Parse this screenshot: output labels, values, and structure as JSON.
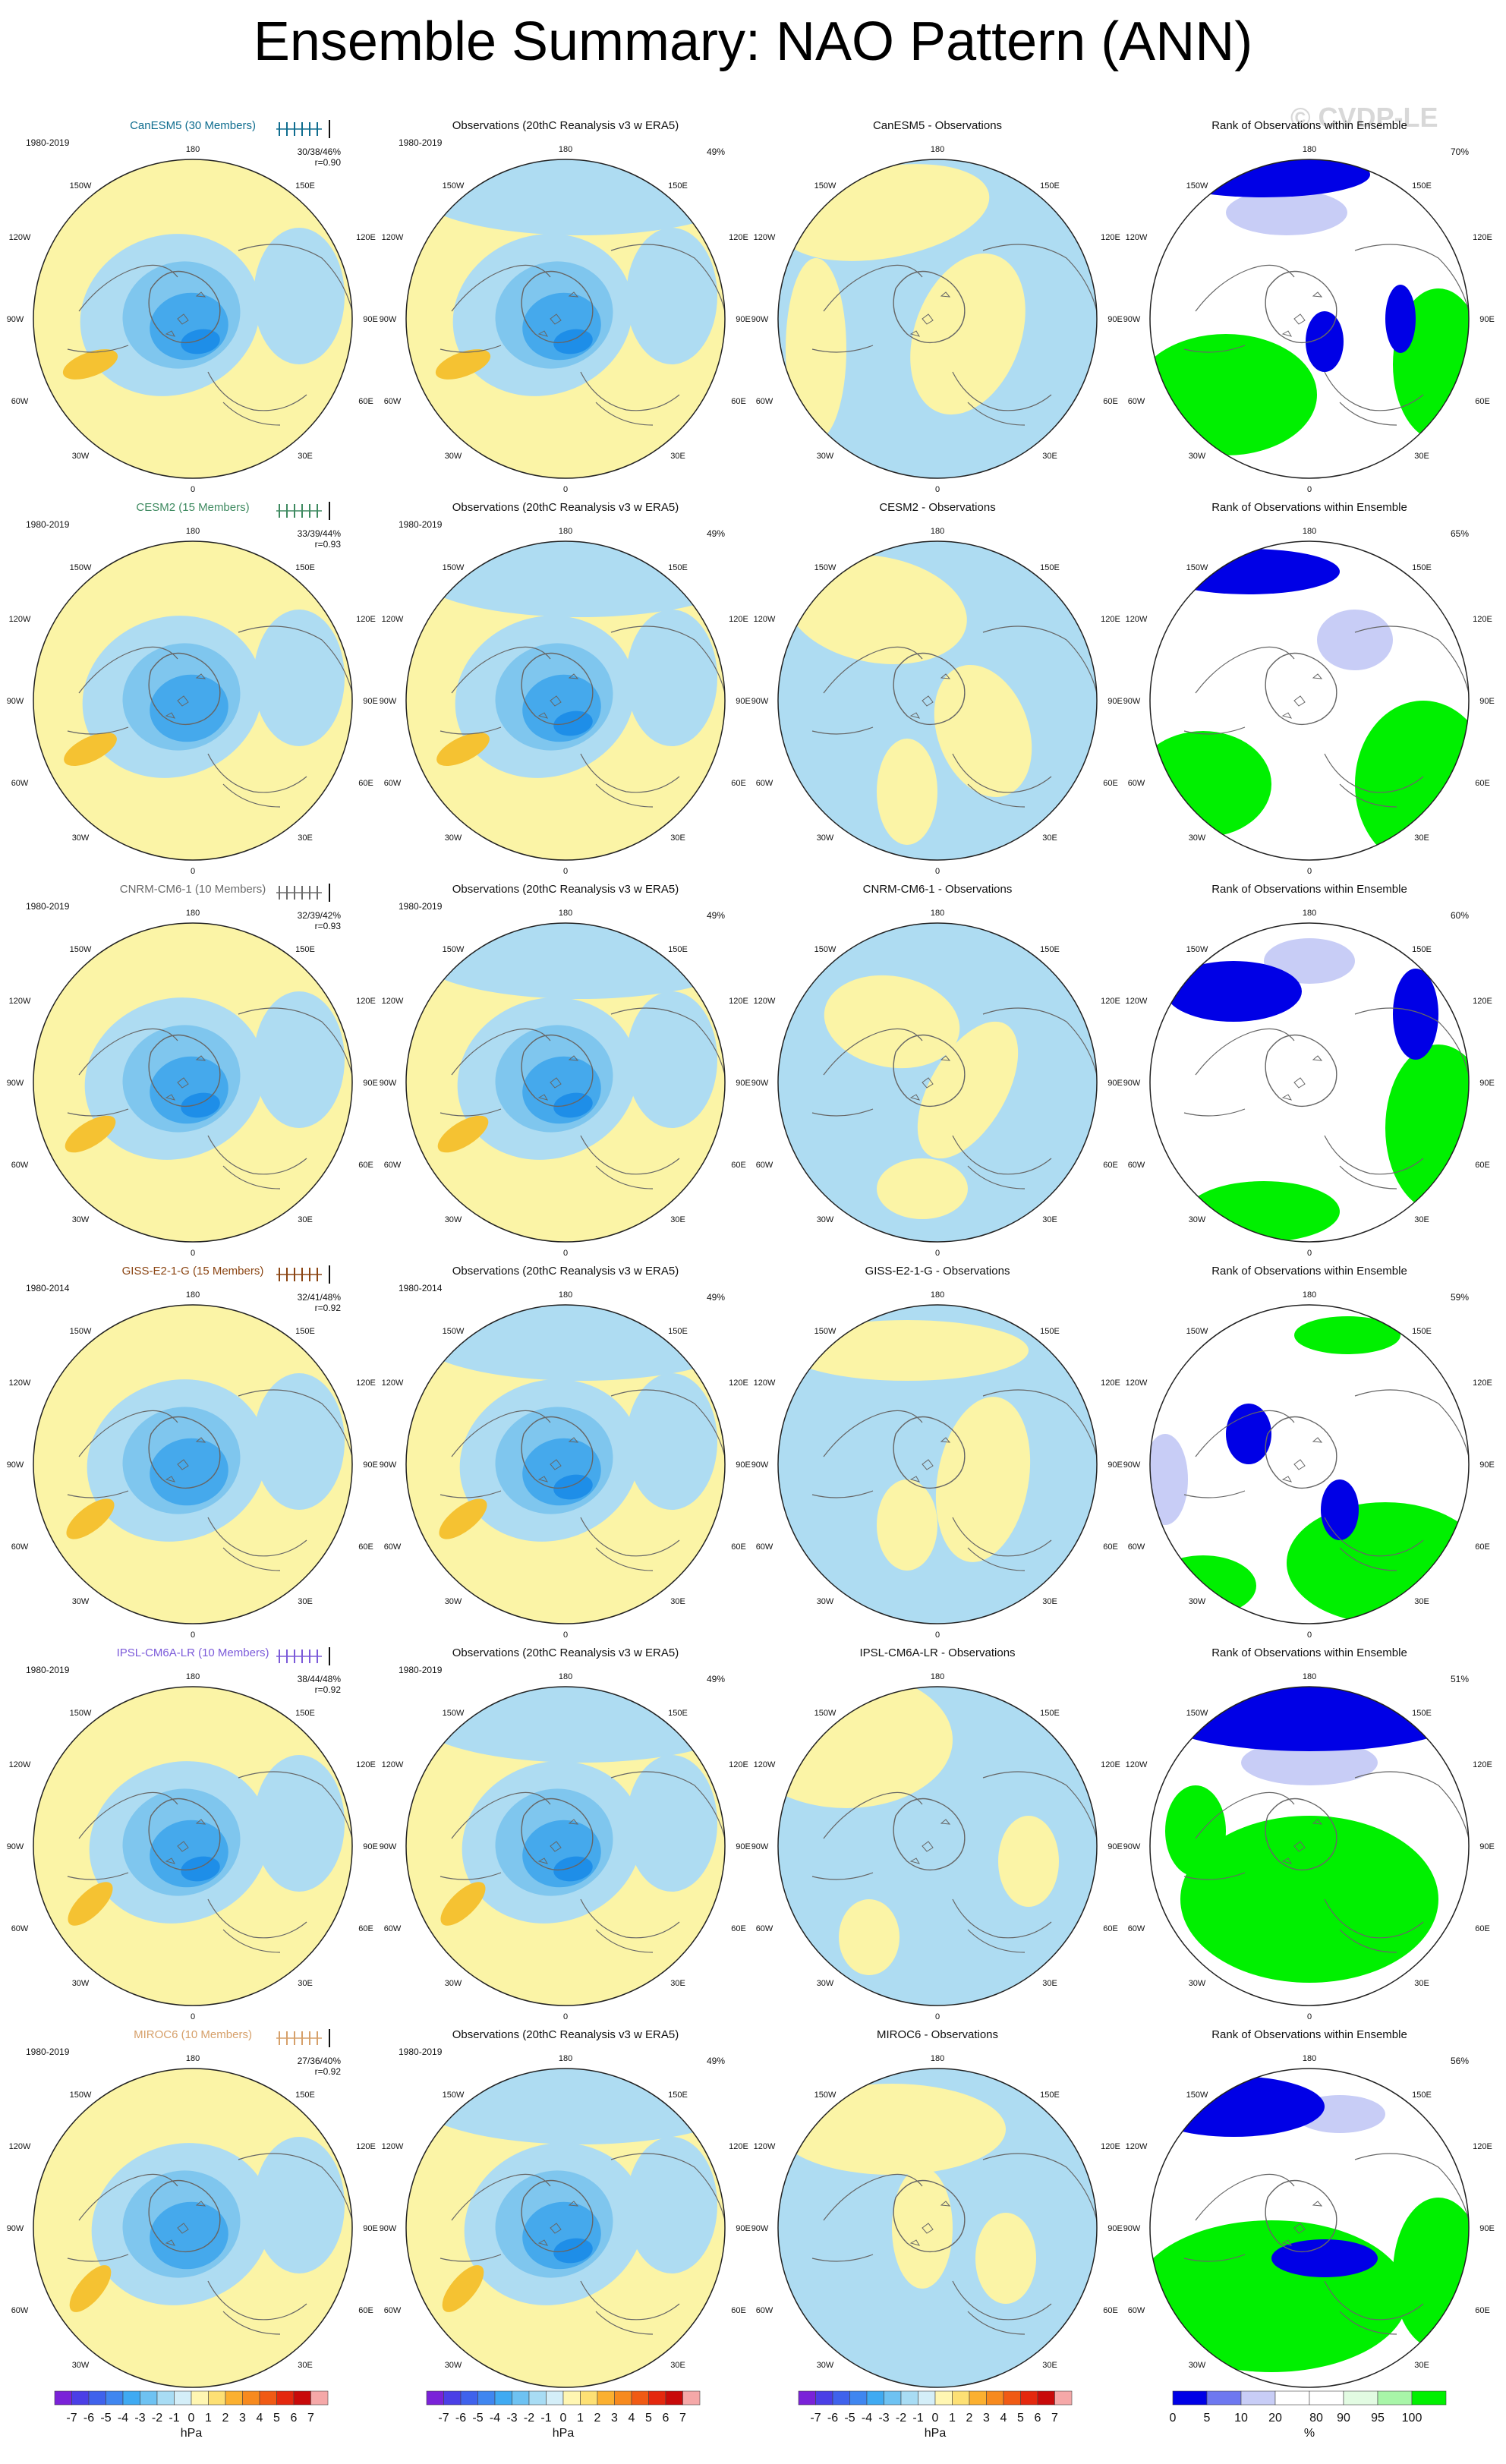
{
  "title": "Ensemble Summary: NAO Pattern (ANN)",
  "watermark": "© CVDP-LE",
  "colors": {
    "positive_fill": "#fbf4a6",
    "negative_fill": "#aedcf2",
    "neg_1": "#7fc6ee",
    "neg_2": "#45a9ec",
    "neg_3": "#1e8ee8",
    "pos_strong": "#f5c232",
    "rank_high": "#00f000",
    "rank_low": "#0000e6",
    "rank_lowmid": "#c8cdf6",
    "rank_highmid": "#e2fbe2",
    "coast": "#666666"
  },
  "obs_title": "Observations (20thC Reanalysis v3 w ERA5)",
  "rank_title": "Rank of Observations within Ensemble",
  "lon_labels": {
    "top": "180",
    "tl": "150W",
    "tr": "150E",
    "ul": "120W",
    "ur": "120E",
    "ml": "90W",
    "mr": "90E",
    "ll": "60W",
    "lr": "60E",
    "bl": "30W",
    "br": "30E",
    "bottom": "0"
  },
  "rows": [
    {
      "model": "CanESM5",
      "members": "CanESM5 (30 Members)",
      "model_color": "#0f6d8f",
      "period": "1980-2019",
      "stats": "30/38/46%",
      "r": "r=0.90",
      "obs_pct": "49%",
      "diff_title": "CanESM5 - Observations",
      "rank_pct": "70%"
    },
    {
      "model": "CESM2",
      "members": "CESM2 (15 Members)",
      "model_color": "#3e8a60",
      "period": "1980-2019",
      "stats": "33/39/44%",
      "r": "r=0.93",
      "obs_pct": "49%",
      "diff_title": "CESM2 - Observations",
      "rank_pct": "65%"
    },
    {
      "model": "CNRM-CM6-1",
      "members": "CNRM-CM6-1 (10 Members)",
      "model_color": "#6b6b6b",
      "period": "1980-2019",
      "stats": "32/39/42%",
      "r": "r=0.93",
      "obs_pct": "49%",
      "diff_title": "CNRM-CM6-1 - Observations",
      "rank_pct": "60%"
    },
    {
      "model": "GISS-E2-1-G",
      "members": "GISS-E2-1-G (15 Members)",
      "model_color": "#8b4513",
      "period": "1980-2014",
      "stats": "32/41/48%",
      "r": "r=0.92",
      "obs_pct": "49%",
      "diff_title": "GISS-E2-1-G - Observations",
      "rank_pct": "59%"
    },
    {
      "model": "IPSL-CM6A-LR",
      "members": "IPSL-CM6A-LR (10 Members)",
      "model_color": "#7b5ad9",
      "period": "1980-2019",
      "stats": "38/44/48%",
      "r": "r=0.92",
      "obs_pct": "49%",
      "diff_title": "IPSL-CM6A-LR - Observations",
      "rank_pct": "51%"
    },
    {
      "model": "MIROC6",
      "members": "MIROC6 (10 Members)",
      "model_color": "#d6a06a",
      "period": "1980-2019",
      "stats": "27/36/40%",
      "r": "r=0.92",
      "obs_pct": "49%",
      "diff_title": "MIROC6 - Observations",
      "rank_pct": "56%"
    }
  ],
  "colorbar_hpa": {
    "labels": [
      "-7",
      "-6",
      "-5",
      "-4",
      "-3",
      "-2",
      "-1",
      "0",
      "1",
      "2",
      "3",
      "4",
      "5",
      "6",
      "7"
    ],
    "unit": "hPa",
    "colors": [
      "#7a22d8",
      "#4b3fe6",
      "#3f62ec",
      "#3f86f0",
      "#3faaf2",
      "#6ec2f2",
      "#a8dcf4",
      "#d4eef8",
      "#fff6b2",
      "#fde074",
      "#fbb030",
      "#f78a1e",
      "#f05a14",
      "#e4280e",
      "#c80a0a",
      "#f5a8a8"
    ]
  },
  "colorbar_rank": {
    "labels": [
      "0",
      "5",
      "10",
      "20",
      "80",
      "90",
      "95",
      "100"
    ],
    "unit": "%",
    "colors": [
      "#0000e6",
      "#6e78f0",
      "#c8cdf6",
      "#ffffff",
      "#ffffff",
      "#e2fbe2",
      "#a8f5a8",
      "#00f000"
    ]
  }
}
